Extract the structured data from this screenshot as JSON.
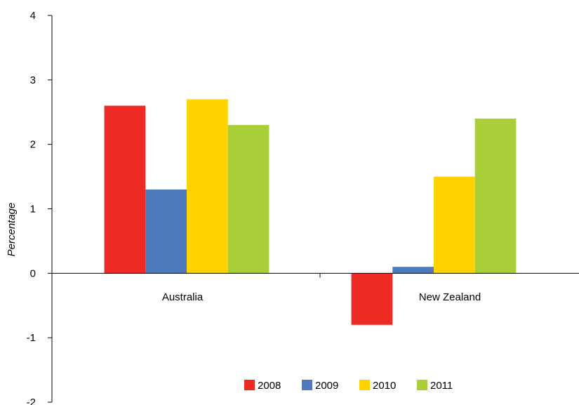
{
  "chart_data": {
    "type": "bar",
    "title": "",
    "xlabel": "",
    "ylabel": "Percentage",
    "ylim": [
      -2,
      4
    ],
    "yticks": [
      -2,
      -1,
      0,
      1,
      2,
      3,
      4
    ],
    "categories": [
      "Australia",
      "New Zealand"
    ],
    "series": [
      {
        "name": "2008",
        "color": "#ee2a24",
        "values": [
          2.6,
          -0.8
        ]
      },
      {
        "name": "2009",
        "color": "#4f79bd",
        "values": [
          1.3,
          0.1
        ]
      },
      {
        "name": "2010",
        "color": "#ffd200",
        "values": [
          2.7,
          1.5
        ]
      },
      {
        "name": "2011",
        "color": "#a8cf38",
        "values": [
          2.3,
          2.4
        ]
      }
    ],
    "legend": {
      "position": "bottom-right",
      "orientation": "horizontal"
    },
    "grid": false
  }
}
